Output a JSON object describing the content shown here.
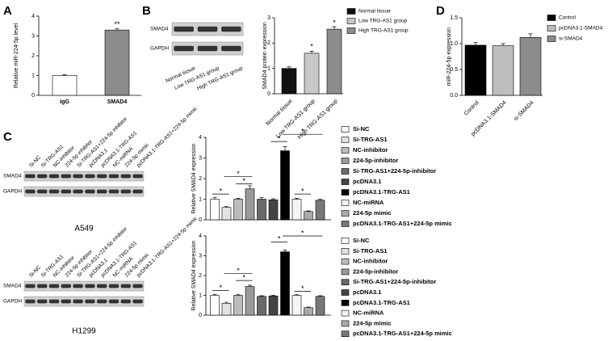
{
  "panel_labels": [
    "A",
    "B",
    "C",
    "D"
  ],
  "blots": [
    {
      "rows": [
        "SMAD4",
        "GAPDH"
      ],
      "lanes": [
        "Normal tissue",
        "Low TRG-AS1 group",
        "High TRG-AS1 group"
      ]
    },
    {
      "rows": [
        "SMAD4",
        "GAPDH"
      ],
      "lanes": [
        "Si-NC",
        "Si-TRG-AS1",
        "NC-inhibitor",
        "224-5p inhibitor",
        "Si-TRG-AS1+224-5p inhibitor",
        "pcDNA3.1",
        "pcDNA3.1-TRG-AS1",
        "NC-miRNA",
        "224-5p mimic",
        "pcDNA3.1-TRG-AS1+224-5p mimic"
      ],
      "caption": "A549"
    },
    {
      "rows": [
        "SMAD4",
        "GAPDH"
      ],
      "lanes": [
        "Si-NC",
        "Si-TRG-AS1",
        "NC-inhibitor",
        "224-5p inhibitor",
        "Si-TRG-AS1+224-5p inhibitor",
        "pcDNA3.1",
        "pcDNA3.1-TRG-AS1",
        "NC-miRNA",
        "224-5p mimic",
        "pcDNA3.1-TRG-AS1+224-5p mimic"
      ],
      "caption": "H1299"
    }
  ],
  "chart_data": [
    {
      "type": "bar",
      "ylabel": "Relative miR-224-5p level",
      "categories": [
        "IgG",
        "SMAD4"
      ],
      "values": [
        1.0,
        3.3
      ],
      "errors": [
        0.04,
        0.08
      ],
      "colors": [
        "#ffffff",
        "#8c8c8c"
      ],
      "ylim": [
        0,
        4
      ],
      "yticks": [
        0,
        1,
        2,
        3,
        4
      ],
      "significance": [
        "**"
      ],
      "category_labels": true,
      "legend": false
    },
    {
      "type": "bar",
      "ylabel": "SMAD4 protein expression",
      "categories": [
        "Normal tissue",
        "Low TRG-AS1 group",
        "High TRG-AS1 group"
      ],
      "values": [
        1.0,
        1.6,
        2.55
      ],
      "errors": [
        0.06,
        0.08,
        0.1
      ],
      "colors": [
        "#111111",
        "#c8c8c8",
        "#8c8c8c"
      ],
      "ylim": [
        0,
        3
      ],
      "yticks": [
        0,
        1,
        2,
        3
      ],
      "significance": [
        "*",
        "*"
      ],
      "category_labels": true,
      "legend": true
    },
    {
      "type": "bar",
      "ylabel": "miR-224-5p expression",
      "categories": [
        "Control",
        "pcDNA3.1-SMAD4",
        "si-SMAD4"
      ],
      "values": [
        0.97,
        0.96,
        1.12
      ],
      "errors": [
        0.05,
        0.04,
        0.07
      ],
      "colors": [
        "#000000",
        "#bdbdbd",
        "#8c8c8c"
      ],
      "ylim": [
        0,
        1.5
      ],
      "yticks": [
        {
          "value": 0,
          "label": "0.0"
        },
        0.5,
        {
          "value": 1,
          "label": "1.0"
        },
        1.5
      ],
      "significance": [],
      "category_labels": true,
      "legend": true
    },
    {
      "type": "bar",
      "ylabel": "Relative SMAD4 expression",
      "categories": [
        "Si-NC",
        "Si-TRG-AS1",
        "NC-inhibitor",
        "224-5p-inhibitor",
        "Si-TRG-AS1+224-5p-inhibitor",
        "pcDNA3.1",
        "pcDNA3.1-TRG-AS1",
        "NC-miRNA",
        "224-5p mimic",
        "pcDNA3.1-TRG-AS1+224-5p mimic"
      ],
      "values": [
        1.0,
        0.6,
        1.0,
        1.5,
        1.0,
        0.97,
        3.35,
        1.0,
        0.4,
        0.95
      ],
      "errors": [
        0.08,
        0.05,
        0.04,
        0.15,
        0.08,
        0.05,
        0.2,
        0.04,
        0.03,
        0.04
      ],
      "colors": [
        "#ffffff",
        "#e2e2e2",
        "#bcbcbc",
        "#999999",
        "#6a6a6a",
        "#444444",
        "#000000",
        "#f4f4f4",
        "#aaaaaa",
        "#777777"
      ],
      "ylim": [
        0,
        4
      ],
      "yticks": [
        0,
        1,
        2,
        3,
        4
      ],
      "significance": [
        "*",
        "*",
        "*",
        "*",
        "*",
        "*"
      ],
      "category_labels": false,
      "legend": true
    },
    {
      "type": "bar",
      "ylabel": "Relative SMAD4 expression",
      "categories": [
        "Si-NC",
        "Si-TRG-AS1",
        "NC-inhibitor",
        "224-5p-inhibitor",
        "Si-TRG-AS1+224-5p-inhibitor",
        "pcDNA3.1",
        "pcDNA3.1-TRG-AS1",
        "NC-miRNA",
        "224-5p mimic",
        "pcDNA3.1-TRG-AS1+224-5p mimic"
      ],
      "values": [
        1.0,
        0.6,
        1.0,
        1.45,
        0.95,
        0.97,
        3.2,
        1.0,
        0.38,
        0.95
      ],
      "errors": [
        0.05,
        0.05,
        0.03,
        0.06,
        0.03,
        0.03,
        0.08,
        0.03,
        0.03,
        0.03
      ],
      "colors": [
        "#ffffff",
        "#e2e2e2",
        "#bcbcbc",
        "#999999",
        "#6a6a6a",
        "#444444",
        "#000000",
        "#f4f4f4",
        "#aaaaaa",
        "#777777"
      ],
      "ylim": [
        0,
        4
      ],
      "yticks": [
        0,
        1,
        2,
        3,
        4
      ],
      "significance": [
        "*",
        "*",
        "*",
        "*",
        "*",
        "*"
      ],
      "category_labels": false,
      "legend": true
    }
  ]
}
